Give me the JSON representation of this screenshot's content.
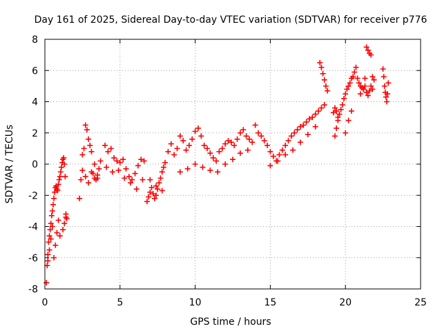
{
  "chart_data": {
    "type": "scatter",
    "title": "Day 161 of 2025, Sidereal Day-to-day VTEC variation (SDTVAR) for receiver p776",
    "xlabel": "GPS time / hours",
    "ylabel": "SDTVAR / TECUs",
    "xlim": [
      0,
      25
    ],
    "ylim": [
      -8,
      8
    ],
    "xticks": [
      0,
      5,
      10,
      15,
      20,
      25
    ],
    "yticks": [
      -8,
      -6,
      -4,
      -2,
      0,
      2,
      4,
      6,
      8
    ],
    "grid": true,
    "marker": "+",
    "colors": {
      "series": "#ff0000",
      "grid": "#a0a0a0",
      "axis": "#000000"
    },
    "series": [
      {
        "name": "SDTVAR",
        "x": [
          0.1,
          0.15,
          0.2,
          0.25,
          0.3,
          0.35,
          0.4,
          0.45,
          0.5,
          0.55,
          0.6,
          0.65,
          0.7,
          0.75,
          0.8,
          0.85,
          0.9,
          0.95,
          1.0,
          1.05,
          1.1,
          1.15,
          1.2,
          1.25,
          1.3,
          1.35,
          1.4,
          1.45,
          0.2,
          0.3,
          0.4,
          0.5,
          0.6,
          0.7,
          0.8,
          0.9,
          1.0,
          1.2,
          1.3,
          1.4,
          2.3,
          2.4,
          2.5,
          2.6,
          2.7,
          2.8,
          2.9,
          3.0,
          3.1,
          3.2,
          3.3,
          3.4,
          3.5,
          3.6,
          3.7,
          2.5,
          2.7,
          2.9,
          3.1,
          3.3,
          3.5,
          4.0,
          4.2,
          4.4,
          4.6,
          4.8,
          5.0,
          5.2,
          5.4,
          5.6,
          5.8,
          6.0,
          6.2,
          6.4,
          6.6,
          4.1,
          4.5,
          4.9,
          5.3,
          5.7,
          6.1,
          6.5,
          6.8,
          6.9,
          7.0,
          7.1,
          7.2,
          7.3,
          7.4,
          7.5,
          7.6,
          7.7,
          7.8,
          7.9,
          8.0,
          7.0,
          7.4,
          7.8,
          8.2,
          8.4,
          8.6,
          8.8,
          9.0,
          9.2,
          9.4,
          9.6,
          9.8,
          10.0,
          10.2,
          10.4,
          10.6,
          10.8,
          11.0,
          11.2,
          11.4,
          11.6,
          11.8,
          12.0,
          12.2,
          12.4,
          12.6,
          12.8,
          13.0,
          13.2,
          13.4,
          13.6,
          13.8,
          14.0,
          14.2,
          14.4,
          14.6,
          9.0,
          9.5,
          10.0,
          10.5,
          11.0,
          11.5,
          12.0,
          12.5,
          13.0,
          13.5,
          14.8,
          15.0,
          15.2,
          15.4,
          15.6,
          15.8,
          16.0,
          16.2,
          16.4,
          16.6,
          16.8,
          17.0,
          17.2,
          17.4,
          17.6,
          17.8,
          18.0,
          18.2,
          18.4,
          18.6,
          15.0,
          15.5,
          16.0,
          16.5,
          17.0,
          17.5,
          18.0,
          18.3,
          18.4,
          18.5,
          18.6,
          18.7,
          18.8,
          19.2,
          19.3,
          19.4,
          19.5,
          19.6,
          19.7,
          19.8,
          19.9,
          20.0,
          20.1,
          20.2,
          20.3,
          20.4,
          20.5,
          20.6,
          20.7,
          20.8,
          20.9,
          21.0,
          21.1,
          21.2,
          21.3,
          21.4,
          21.5,
          21.6,
          21.7,
          21.8,
          21.9,
          19.3,
          19.4,
          19.5,
          20.0,
          20.2,
          20.4,
          21.0,
          21.2,
          21.3,
          21.4,
          21.5,
          21.6,
          21.7,
          21.8,
          22.5,
          22.55,
          22.6,
          22.65,
          22.7,
          22.75,
          22.8,
          22.85
        ],
        "y": [
          -7.6,
          -6.5,
          -5.8,
          -5.0,
          -4.6,
          -4.2,
          -3.8,
          -3.3,
          -3.0,
          -2.6,
          -2.2,
          -1.8,
          -1.5,
          -1.4,
          -1.6,
          -1.7,
          -1.3,
          -1.0,
          -0.8,
          -0.5,
          -0.2,
          0.1,
          0.3,
          0.4,
          0.0,
          -0.8,
          -3.2,
          -3.5,
          -6.2,
          -5.5,
          -4.8,
          -4.0,
          -6.0,
          -5.2,
          -4.4,
          -3.6,
          -4.6,
          -4.2,
          -3.8,
          -3.4,
          -2.2,
          -1.0,
          0.6,
          1.0,
          2.5,
          2.2,
          1.6,
          1.2,
          0.8,
          -0.6,
          -0.9,
          -1.0,
          -0.7,
          -0.3,
          0.2,
          -0.4,
          -0.8,
          -1.2,
          -0.5,
          0.0,
          -0.9,
          1.2,
          0.8,
          1.0,
          0.4,
          0.2,
          0.1,
          0.3,
          -0.3,
          -0.8,
          -1.0,
          -0.6,
          -0.1,
          0.3,
          0.2,
          -0.2,
          -0.5,
          -0.4,
          -0.9,
          -1.2,
          -1.6,
          -1.0,
          -2.4,
          -2.1,
          -1.8,
          -1.5,
          -1.9,
          -2.2,
          -2.0,
          -1.6,
          -1.2,
          -0.9,
          -0.5,
          -0.2,
          0.1,
          -1.0,
          -1.4,
          -1.7,
          0.8,
          1.3,
          0.6,
          1.0,
          1.8,
          1.5,
          0.9,
          1.2,
          1.6,
          2.1,
          2.3,
          1.8,
          1.2,
          1.0,
          0.7,
          0.4,
          0.2,
          0.8,
          1.0,
          1.3,
          1.5,
          1.4,
          1.2,
          1.6,
          2.0,
          2.2,
          1.8,
          1.6,
          1.4,
          2.5,
          2.0,
          1.8,
          1.5,
          -0.5,
          -0.3,
          0.0,
          -0.2,
          -0.4,
          -0.5,
          0.0,
          0.3,
          0.7,
          0.9,
          1.2,
          0.8,
          0.5,
          0.2,
          0.6,
          0.9,
          1.2,
          1.5,
          1.8,
          2.0,
          2.2,
          2.4,
          2.5,
          2.7,
          2.9,
          3.0,
          3.2,
          3.4,
          3.6,
          3.8,
          -0.1,
          0.2,
          0.6,
          0.9,
          1.4,
          1.9,
          2.4,
          6.5,
          6.2,
          5.8,
          5.4,
          5.0,
          4.7,
          3.3,
          3.6,
          3.4,
          3.0,
          3.2,
          3.5,
          3.8,
          4.2,
          4.5,
          4.8,
          5.0,
          5.2,
          5.5,
          5.6,
          5.9,
          6.2,
          5.5,
          5.2,
          5.0,
          4.9,
          4.8,
          5.5,
          7.5,
          7.3,
          7.1,
          7.0,
          5.6,
          5.4,
          1.8,
          2.3,
          2.8,
          2.0,
          2.8,
          3.4,
          4.5,
          4.8,
          5.0,
          4.6,
          4.4,
          4.7,
          5.0,
          4.8,
          6.1,
          5.6,
          5.0,
          4.6,
          4.3,
          4.0,
          4.5,
          5.2
        ]
      }
    ]
  }
}
